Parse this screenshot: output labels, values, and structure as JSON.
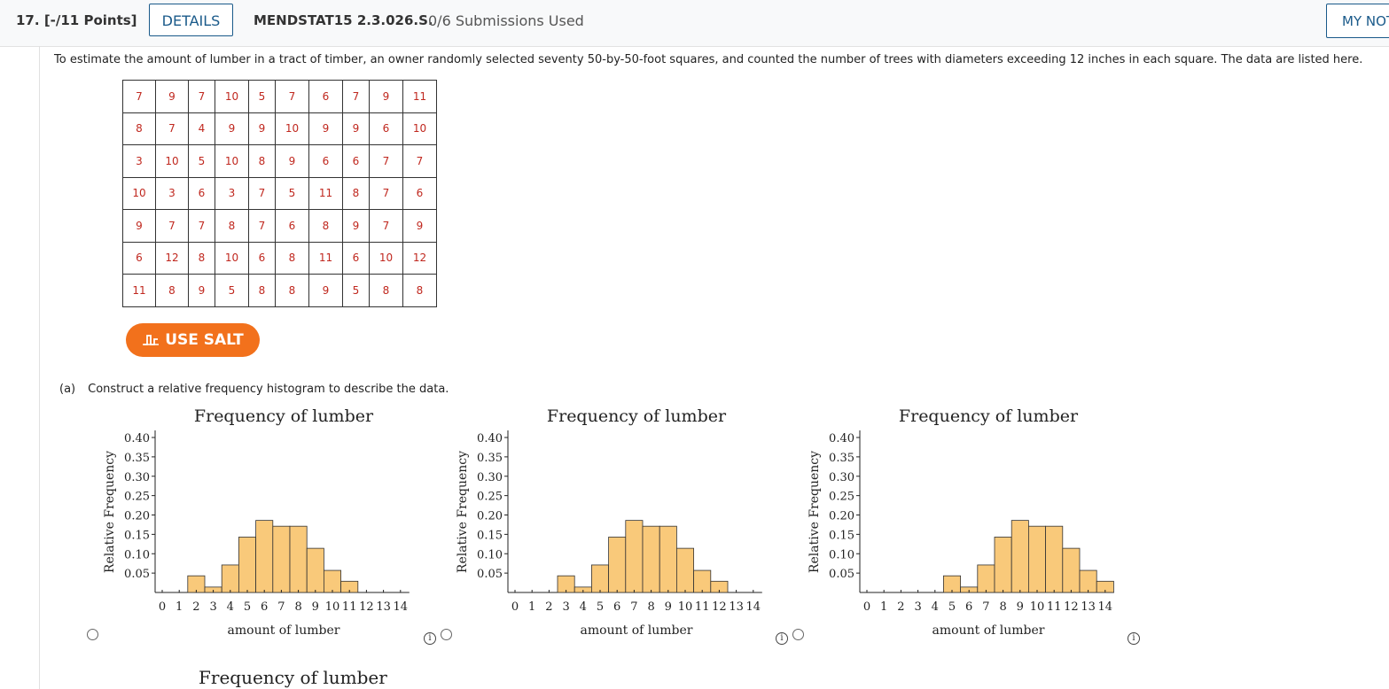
{
  "header": {
    "question_number": "17.",
    "points": "[-/11 Points]",
    "details_label": "DETAILS",
    "problem_code": "MENDSTAT15 2.3.026.S.",
    "submissions": "0/6 Submissions Used",
    "my_notes_label": "MY NOTES"
  },
  "prompt": "To estimate the amount of lumber in a tract of timber, an owner randomly selected seventy 50-by-50-foot squares, and counted the number of trees with diameters exceeding 12 inches in each square. The data are listed here.",
  "data_table": [
    [
      "7",
      "9",
      "7",
      "10",
      "5",
      "7",
      "6",
      "7",
      "9",
      "11"
    ],
    [
      "8",
      "7",
      "4",
      "9",
      "9",
      "10",
      "9",
      "9",
      "6",
      "10"
    ],
    [
      "3",
      "10",
      "5",
      "10",
      "8",
      "9",
      "6",
      "6",
      "7",
      "7"
    ],
    [
      "10",
      "3",
      "6",
      "3",
      "7",
      "5",
      "11",
      "8",
      "7",
      "6"
    ],
    [
      "9",
      "7",
      "7",
      "8",
      "7",
      "6",
      "8",
      "9",
      "7",
      "9"
    ],
    [
      "6",
      "12",
      "8",
      "10",
      "6",
      "8",
      "11",
      "6",
      "10",
      "12"
    ],
    [
      "11",
      "8",
      "9",
      "5",
      "8",
      "8",
      "9",
      "5",
      "8",
      "8"
    ]
  ],
  "salt_label": "USE SALT",
  "part_a": {
    "label": "(a)",
    "text": "Construct a relative frequency histogram to describe the data."
  },
  "bottom_partial_title": "Frequency of lumber",
  "colors": {
    "bar_fill": "#f9c97a",
    "bar_stroke": "#333333",
    "accent": "#1a5a8a",
    "salt": "#f2711c",
    "data_text": "#c0281f"
  },
  "chart_data": [
    {
      "type": "bar",
      "title": "Frequency of lumber",
      "xlabel": "amount of lumber",
      "ylabel": "Relative Frequency",
      "ylim": [
        0,
        0.4
      ],
      "y_ticks": [
        "0.05",
        "0.10",
        "0.15",
        "0.20",
        "0.25",
        "0.30",
        "0.35",
        "0.40"
      ],
      "x_ticks": [
        "0",
        "1",
        "2",
        "3",
        "4",
        "5",
        "6",
        "7",
        "8",
        "9",
        "10",
        "11",
        "12",
        "13",
        "14"
      ],
      "bins": [
        {
          "x": 2,
          "value": 0.043
        },
        {
          "x": 3,
          "value": 0.014
        },
        {
          "x": 4,
          "value": 0.071
        },
        {
          "x": 5,
          "value": 0.143
        },
        {
          "x": 6,
          "value": 0.186
        },
        {
          "x": 7,
          "value": 0.171
        },
        {
          "x": 8,
          "value": 0.171
        },
        {
          "x": 9,
          "value": 0.114
        },
        {
          "x": 10,
          "value": 0.057
        },
        {
          "x": 11,
          "value": 0.029
        }
      ]
    },
    {
      "type": "bar",
      "title": "Frequency of lumber",
      "xlabel": "amount of lumber",
      "ylabel": "Relative Frequency",
      "ylim": [
        0,
        0.4
      ],
      "y_ticks": [
        "0.05",
        "0.10",
        "0.15",
        "0.20",
        "0.25",
        "0.30",
        "0.35",
        "0.40"
      ],
      "x_ticks": [
        "0",
        "1",
        "2",
        "3",
        "4",
        "5",
        "6",
        "7",
        "8",
        "9",
        "10",
        "11",
        "12",
        "13",
        "14"
      ],
      "bins": [
        {
          "x": 3,
          "value": 0.043
        },
        {
          "x": 4,
          "value": 0.014
        },
        {
          "x": 5,
          "value": 0.071
        },
        {
          "x": 6,
          "value": 0.143
        },
        {
          "x": 7,
          "value": 0.186
        },
        {
          "x": 8,
          "value": 0.171
        },
        {
          "x": 9,
          "value": 0.171
        },
        {
          "x": 10,
          "value": 0.114
        },
        {
          "x": 11,
          "value": 0.057
        },
        {
          "x": 12,
          "value": 0.029
        }
      ]
    },
    {
      "type": "bar",
      "title": "Frequency of lumber",
      "xlabel": "amount of lumber",
      "ylabel": "Relative Frequency",
      "ylim": [
        0,
        0.4
      ],
      "y_ticks": [
        "0.05",
        "0.10",
        "0.15",
        "0.20",
        "0.25",
        "0.30",
        "0.35",
        "0.40"
      ],
      "x_ticks": [
        "0",
        "1",
        "2",
        "3",
        "4",
        "5",
        "6",
        "7",
        "8",
        "9",
        "10",
        "11",
        "12",
        "13",
        "14"
      ],
      "bins": [
        {
          "x": 5,
          "value": 0.043
        },
        {
          "x": 6,
          "value": 0.014
        },
        {
          "x": 7,
          "value": 0.071
        },
        {
          "x": 8,
          "value": 0.143
        },
        {
          "x": 9,
          "value": 0.186
        },
        {
          "x": 10,
          "value": 0.171
        },
        {
          "x": 11,
          "value": 0.171
        },
        {
          "x": 12,
          "value": 0.114
        },
        {
          "x": 13,
          "value": 0.057
        },
        {
          "x": 14,
          "value": 0.029
        }
      ]
    }
  ]
}
